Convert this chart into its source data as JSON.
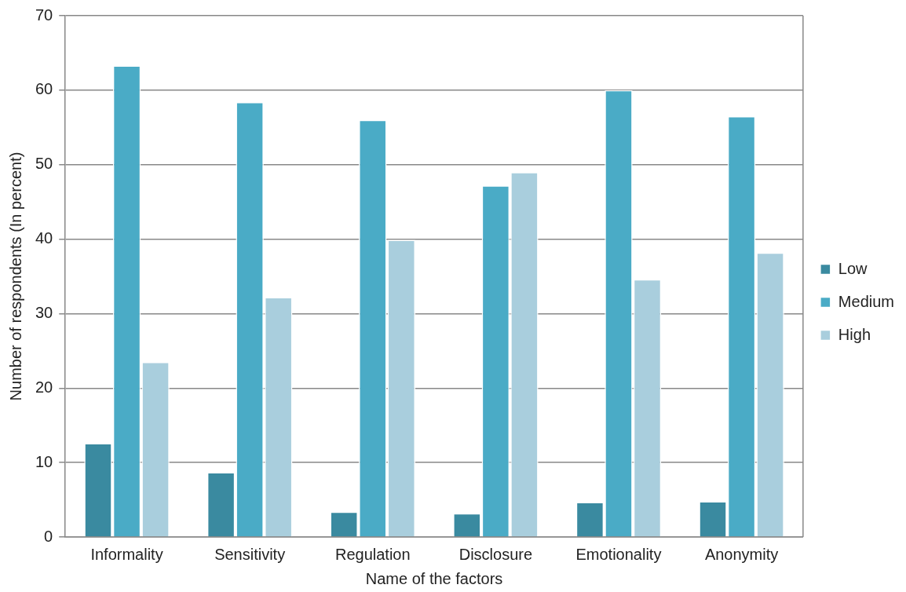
{
  "chart_data": {
    "type": "bar",
    "xlabel": "Name of the factors",
    "ylabel": "Number of respondents (In percent)",
    "categories": [
      "Informality",
      "Sensitivity",
      "Regulation",
      "Disclosure",
      "Emotionality",
      "Anonymity"
    ],
    "series": [
      {
        "name": "Low",
        "color": "#3a8aa0",
        "values": [
          12.6,
          8.7,
          3.4,
          3.2,
          4.7,
          4.8
        ]
      },
      {
        "name": "Medium",
        "color": "#4aabc6",
        "values": [
          63.3,
          58.4,
          56.0,
          47.2,
          60.0,
          56.5
        ]
      },
      {
        "name": "High",
        "color": "#a9cedd",
        "values": [
          23.5,
          32.2,
          39.9,
          49.0,
          34.6,
          38.2
        ]
      }
    ],
    "ylim": [
      0,
      70
    ],
    "yticks": [
      0,
      10,
      20,
      30,
      40,
      50,
      60,
      70
    ],
    "grid": "y",
    "legend": "right"
  }
}
